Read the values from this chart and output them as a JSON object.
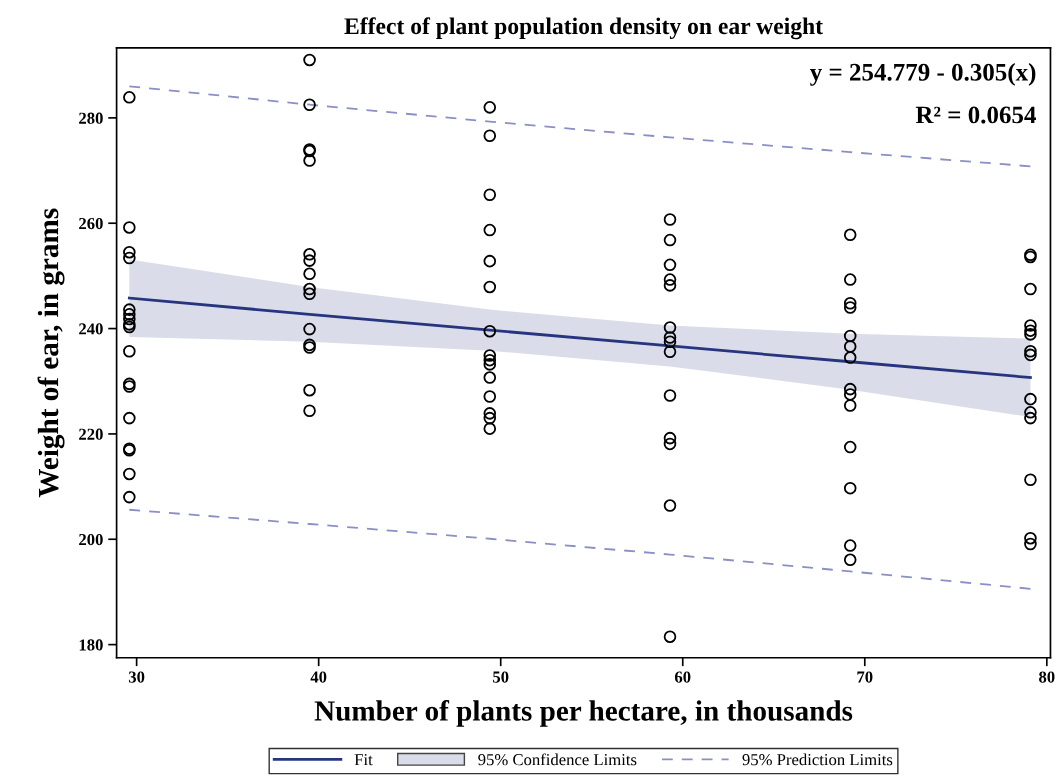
{
  "chart_data": {
    "type": "scatter",
    "title": "Effect of plant population density on ear weight",
    "xlabel": "Number of plants per hectare, in thousands",
    "ylabel": "Weight of ear, in grams",
    "xlim": [
      28.9,
      80.2
    ],
    "ylim": [
      177.5,
      293.3
    ],
    "xticks": [
      30,
      40,
      50,
      60,
      70,
      80
    ],
    "yticks": [
      180,
      200,
      220,
      240,
      260,
      280
    ],
    "grid": false,
    "legend": "bottom",
    "annotations": [
      "y = 254.779 - 0.305(x)",
      "R² = 0.0654",
      "95% Confidence Limits"
    ],
    "series": [
      {
        "type": "line",
        "name": "Fit",
        "color": "#27357e",
        "line_style": "solid",
        "marker": "none",
        "x": [
          29.6,
          39.5,
          49.4,
          59.3,
          69.2,
          79.1
        ],
        "values": [
          245.8,
          242.7,
          239.7,
          236.7,
          233.7,
          230.7
        ],
        "lower": [
          238.4,
          237.5,
          235.8,
          232.8,
          228.4,
          223.2
        ],
        "upper": [
          253.1,
          247.9,
          243.6,
          240.6,
          239.0,
          238.1
        ]
      },
      {
        "color": "#000000",
        "marker": "circle",
        "x": [
          29.6,
          29.6,
          29.6,
          29.6,
          29.6,
          29.6,
          29.6,
          29.6,
          29.6,
          29.6,
          29.6,
          29.6,
          29.6,
          29.6,
          29.6,
          29.6,
          29.6,
          39.5,
          39.5,
          39.5,
          39.5,
          39.5,
          39.5,
          39.5,
          39.5,
          39.5,
          39.5,
          39.5,
          39.5,
          39.5,
          39.5,
          39.5,
          49.4,
          49.4,
          49.4,
          49.4,
          49.4,
          49.4,
          49.4,
          49.4,
          49.4,
          49.4,
          49.4,
          49.4,
          49.4,
          49.4,
          49.4,
          59.3,
          59.3,
          59.3,
          59.3,
          59.3,
          59.3,
          59.3,
          59.3,
          59.3,
          59.3,
          59.3,
          59.3,
          59.3,
          59.3,
          69.2,
          69.2,
          69.2,
          69.2,
          69.2,
          69.2,
          69.2,
          69.2,
          69.2,
          69.2,
          69.2,
          69.2,
          69.2,
          69.2,
          79.1,
          79.1,
          79.1,
          79.1,
          79.1,
          79.1,
          79.1,
          79.1,
          79.1,
          79.1,
          79.1,
          79.1,
          79.1,
          79.1
        ],
        "values": [
          283.9,
          259.2,
          254.5,
          253.4,
          243.6,
          242.7,
          241.8,
          240.8,
          240.3,
          235.7,
          229.5,
          229.0,
          223.0,
          217.2,
          216.9,
          212.4,
          208.0,
          291.0,
          282.5,
          274.0,
          273.7,
          271.9,
          254.1,
          252.9,
          250.4,
          247.5,
          246.6,
          239.9,
          236.9,
          236.4,
          228.3,
          224.4,
          282.0,
          276.6,
          265.4,
          258.7,
          252.8,
          247.9,
          239.5,
          234.9,
          234.0,
          233.2,
          230.7,
          227.1,
          223.9,
          223.0,
          221.0,
          260.7,
          256.8,
          252.1,
          249.3,
          248.2,
          240.2,
          238.3,
          237.5,
          235.6,
          227.3,
          219.2,
          218.1,
          206.4,
          181.5,
          257.8,
          249.3,
          244.8,
          244.0,
          238.6,
          236.6,
          234.5,
          228.5,
          227.5,
          225.4,
          217.5,
          209.7,
          198.8,
          196.1,
          254.0,
          253.6,
          247.5,
          240.6,
          239.6,
          238.9,
          235.7,
          235.0,
          226.6,
          224.1,
          223.0,
          211.3,
          200.2,
          199.1
        ]
      },
      {
        "type": "line",
        "name": "95% Prediction Limits",
        "color": "#8a8fc4",
        "line_style": "dashed",
        "marker": "none",
        "x": [
          29.6,
          39.5,
          49.4,
          59.3,
          69.2,
          79.1
        ],
        "values": [
          286.0,
          282.5,
          279.3,
          276.3,
          273.5,
          270.8
        ]
      },
      {
        "type": "line",
        "color": "#8a8fc4",
        "line_style": "dashed",
        "marker": "none",
        "x": [
          29.6,
          39.5,
          49.4,
          59.3,
          69.2,
          79.1
        ],
        "values": [
          205.6,
          202.9,
          200.1,
          197.1,
          193.9,
          190.6
        ]
      }
    ]
  }
}
